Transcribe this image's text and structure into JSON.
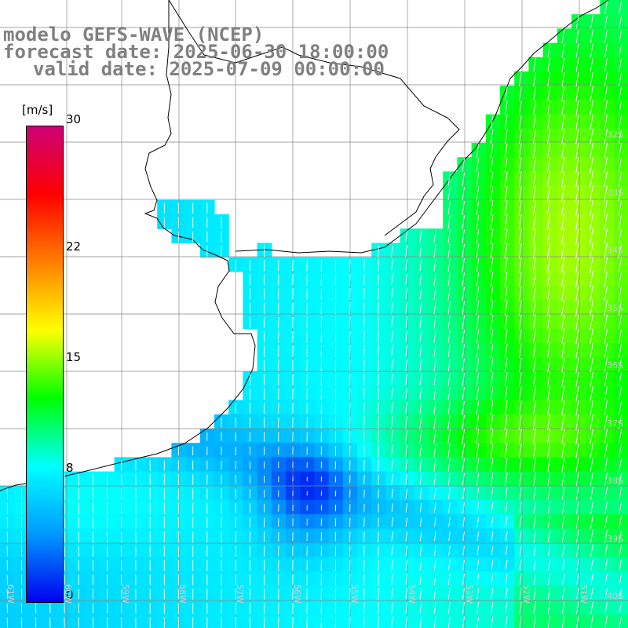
{
  "titles": {
    "model": "modelo GEFS-WAVE (NCEP)",
    "forecast": "forecast date: 2025-06-30 18:00:00",
    "valid": "valid date: 2025-07-09 00:00:00"
  },
  "colorbar": {
    "unit": "[m/s]",
    "range": [
      0,
      30
    ],
    "ticks": [
      {
        "value": 30,
        "label": "30"
      },
      {
        "value": 22,
        "label": "22"
      },
      {
        "value": 15,
        "label": "15"
      },
      {
        "value": 8,
        "label": "8"
      },
      {
        "value": 0,
        "label": "0"
      }
    ],
    "colors": [
      "#0000ee",
      "#0099ff",
      "#00ffff",
      "#00ff00",
      "#ffff00",
      "#ff8000",
      "#ff0000",
      "#cc0077"
    ]
  },
  "map": {
    "land_color": "#ffffff",
    "grid_color": "#888888",
    "coast_color": "#000000",
    "vector_color": "#ffffff",
    "lat_labels": [
      "32S",
      "33S",
      "34S",
      "35S",
      "36S",
      "37S",
      "38S",
      "39S",
      "40S"
    ],
    "lon_labels": [
      "61W",
      "60W",
      "59W",
      "58W",
      "57W",
      "56W",
      "55W",
      "54W",
      "53W",
      "52W",
      "51W"
    ]
  }
}
